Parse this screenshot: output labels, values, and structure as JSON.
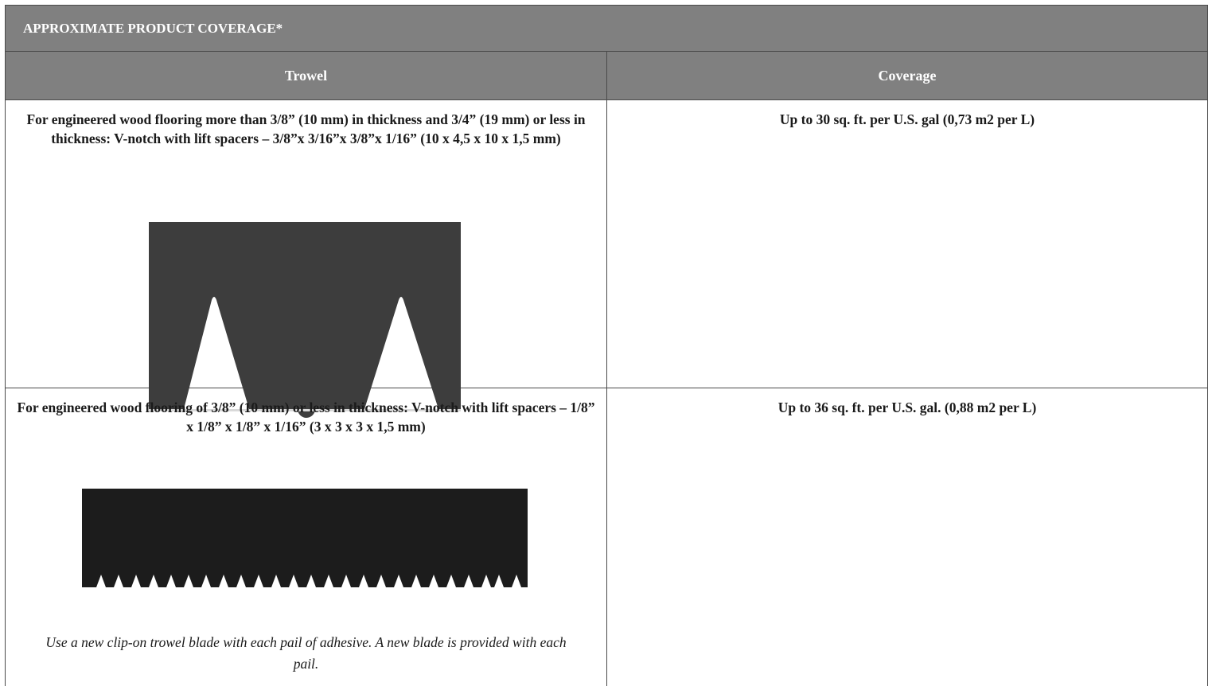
{
  "table": {
    "title": "APPROXIMATE PRODUCT COVERAGE*",
    "headers": {
      "trowel": "Trowel",
      "coverage": "Coverage"
    },
    "rows": [
      {
        "trowel": "For engineered wood flooring more than 3/8” (10 mm) in thickness and 3/4” (19 mm) or less in thickness: V-notch with lift spacers – 3/8”x 3/16”x 3/8”x 1/16” (10 x 4,5 x 10 x 1,5 mm)",
        "figure": "v-notch-trowel-large",
        "figure_color": "#3d3d3d",
        "coverage": "Up to 30 sq. ft. per U.S. gal (0,73 m2 per L)"
      },
      {
        "trowel": "For engineered wood flooring of 3/8” (10 mm) or less in thickness: V-notch with lift spacers – 1/8” x 1/8” x 1/8” x 1/16” (3 x 3 x 3 x 1,5 mm)",
        "figure": "v-notch-trowel-small",
        "figure_color": "#1c1c1c",
        "coverage": "Up to 36 sq. ft. per U.S. gal. (0,88 m2 per L)",
        "note": "Use a new clip-on trowel blade with each pail of adhesive. A new blade is provided with each pail."
      }
    ],
    "header_background": "#808080"
  }
}
